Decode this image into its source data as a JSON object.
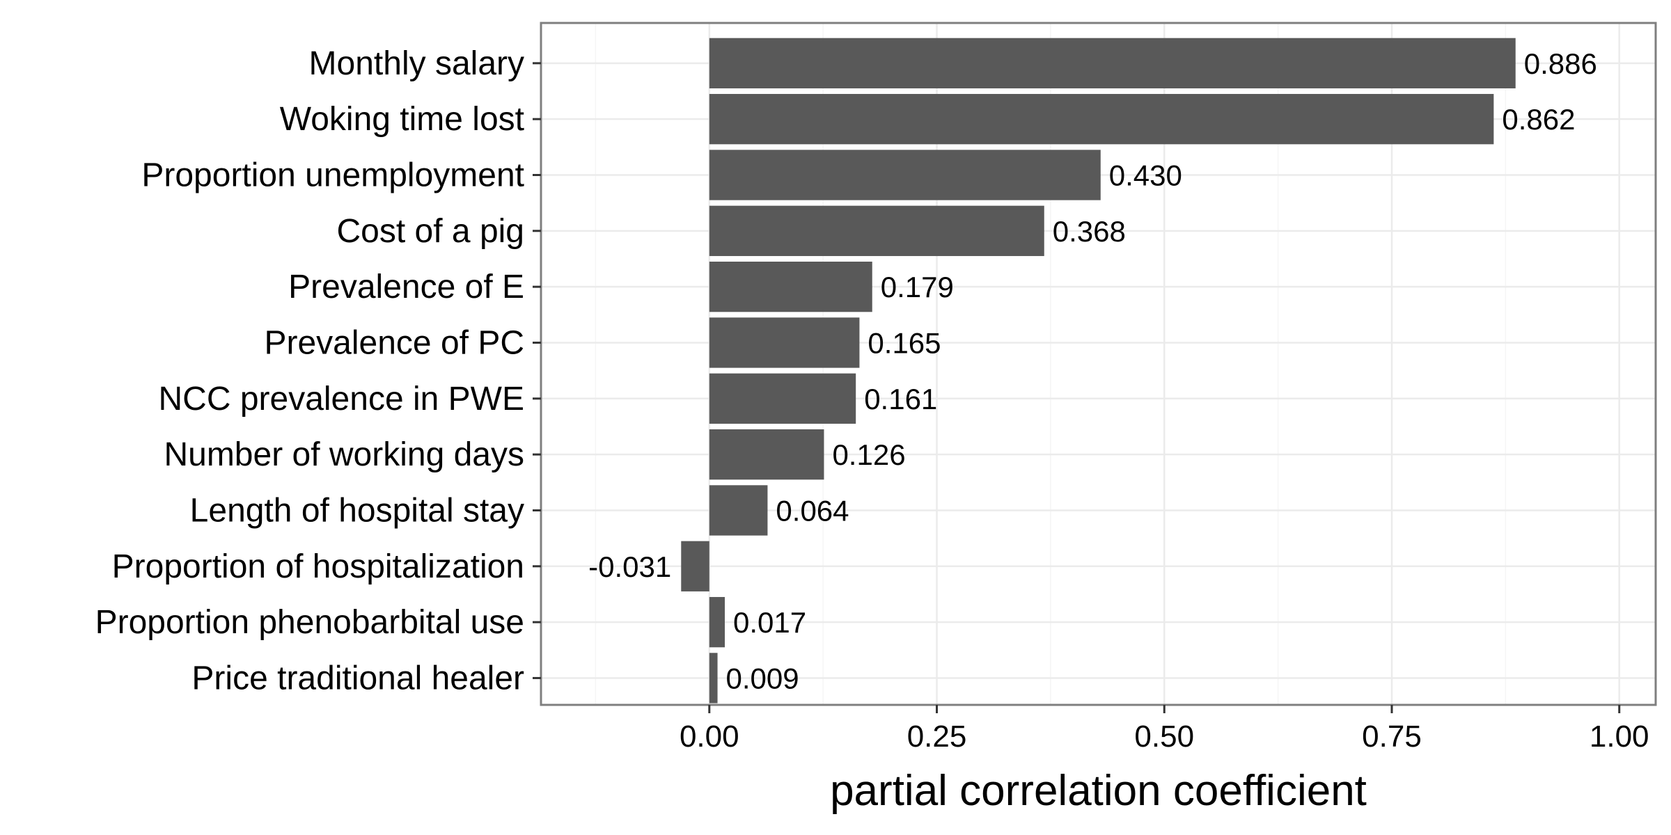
{
  "chart_data": {
    "type": "bar",
    "orientation": "horizontal",
    "title": "",
    "xlabel": "partial correlation coefficient",
    "ylabel": "",
    "xlim": [
      -0.185,
      1.04
    ],
    "x_ticks": [
      0.0,
      0.25,
      0.5,
      0.75,
      1.0
    ],
    "x_tick_labels": [
      "0.00",
      "0.25",
      "0.50",
      "0.75",
      "1.00"
    ],
    "grid": true,
    "legend": "none",
    "categories": [
      "Monthly salary",
      "Woking time lost",
      "Proportion unemployment",
      "Cost of a pig",
      "Prevalence of E",
      "Prevalence of PC",
      "NCC prevalence in PWE",
      "Number of working days",
      "Length of hospital stay",
      "Proportion of hospitalization",
      "Proportion phenobarbital use",
      "Price traditional healer"
    ],
    "values": [
      0.886,
      0.862,
      0.43,
      0.368,
      0.179,
      0.165,
      0.161,
      0.126,
      0.064,
      -0.031,
      0.017,
      0.009
    ],
    "data_labels": [
      "0.886",
      "0.862",
      "0.430",
      "0.368",
      "0.179",
      "0.165",
      "0.161",
      "0.126",
      "0.064",
      "-0.031",
      "0.017",
      "0.009"
    ],
    "colors": {
      "bar": "#595959",
      "panel_border": "#7f7f7f",
      "grid_major": "#ebebeb",
      "grid_minor": "#f5f5f5",
      "text": "#000000"
    }
  }
}
